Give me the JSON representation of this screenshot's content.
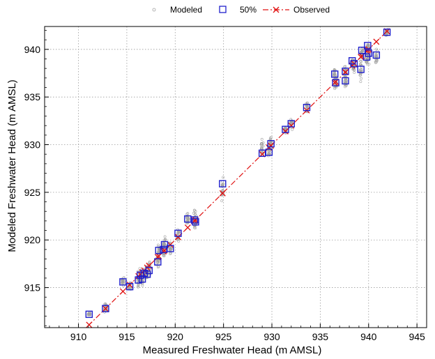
{
  "chart_data": {
    "type": "scatter",
    "xlabel": "Measured Freshwater Head (m AMSL)",
    "ylabel": "Modeled Freshwater Head (m AMSL)",
    "xlim": [
      906.5,
      946.0
    ],
    "ylim": [
      910.8,
      942.4
    ],
    "x_ticks": [
      910,
      915,
      920,
      925,
      930,
      935,
      940,
      945
    ],
    "y_ticks": [
      915,
      920,
      925,
      930,
      935,
      940
    ],
    "grid": true,
    "legend_position": "top-center",
    "legend": {
      "modeled": "Modeled",
      "p50": "50%",
      "observed": "Observed"
    },
    "colors": {
      "modeled": "#a0a0a0",
      "p50": "#1f1fcc",
      "observed": "#e01010"
    },
    "observed_line": {
      "x": [
        911.0,
        942.0
      ],
      "y": [
        911.0,
        942.0
      ]
    },
    "wells": [
      {
        "x": 911.1,
        "p50": 912.2,
        "min": 912.0,
        "max": 912.5
      },
      {
        "x": 912.8,
        "p50": 912.8,
        "min": 912.3,
        "max": 913.6
      },
      {
        "x": 914.6,
        "p50": 915.6,
        "min": 915.0,
        "max": 916.4
      },
      {
        "x": 915.3,
        "p50": 915.1,
        "min": 914.5,
        "max": 915.8
      },
      {
        "x": 916.2,
        "p50": 915.8,
        "min": 914.8,
        "max": 916.9
      },
      {
        "x": 916.4,
        "p50": 916.3,
        "min": 915.2,
        "max": 917.3
      },
      {
        "x": 916.6,
        "p50": 915.9,
        "min": 915.0,
        "max": 917.0
      },
      {
        "x": 916.8,
        "p50": 916.5,
        "min": 915.6,
        "max": 917.4
      },
      {
        "x": 917.1,
        "p50": 916.4,
        "min": 915.5,
        "max": 917.6
      },
      {
        "x": 917.3,
        "p50": 916.8,
        "min": 916.0,
        "max": 918.0
      },
      {
        "x": 918.2,
        "p50": 917.7,
        "min": 916.8,
        "max": 918.8
      },
      {
        "x": 918.3,
        "p50": 918.9,
        "min": 917.8,
        "max": 919.8
      },
      {
        "x": 918.9,
        "p50": 919.5,
        "min": 918.4,
        "max": 920.6
      },
      {
        "x": 918.8,
        "p50": 919.0,
        "min": 918.0,
        "max": 920.1
      },
      {
        "x": 919.5,
        "p50": 919.1,
        "min": 918.3,
        "max": 920.0
      },
      {
        "x": 920.3,
        "p50": 920.7,
        "min": 919.6,
        "max": 921.6
      },
      {
        "x": 921.3,
        "p50": 922.2,
        "min": 921.0,
        "max": 923.3
      },
      {
        "x": 922.0,
        "p50": 922.1,
        "min": 920.9,
        "max": 923.6
      },
      {
        "x": 922.1,
        "p50": 921.9,
        "min": 920.8,
        "max": 922.9
      },
      {
        "x": 924.9,
        "p50": 925.9,
        "min": 923.9,
        "max": 927.2
      },
      {
        "x": 929.0,
        "p50": 929.1,
        "min": 928.1,
        "max": 931.2
      },
      {
        "x": 929.7,
        "p50": 929.2,
        "min": 928.3,
        "max": 930.3
      },
      {
        "x": 929.9,
        "p50": 930.1,
        "min": 929.2,
        "max": 931.0
      },
      {
        "x": 931.4,
        "p50": 931.6,
        "min": 930.9,
        "max": 932.2
      },
      {
        "x": 932.0,
        "p50": 932.2,
        "min": 931.5,
        "max": 932.9
      },
      {
        "x": 933.6,
        "p50": 933.9,
        "min": 933.1,
        "max": 934.9
      },
      {
        "x": 936.5,
        "p50": 937.4,
        "min": 936.4,
        "max": 938.3
      },
      {
        "x": 936.6,
        "p50": 936.5,
        "min": 935.6,
        "max": 937.3
      },
      {
        "x": 937.6,
        "p50": 937.7,
        "min": 936.6,
        "max": 938.6
      },
      {
        "x": 937.6,
        "p50": 936.7,
        "min": 935.3,
        "max": 937.6
      },
      {
        "x": 938.3,
        "p50": 938.8,
        "min": 937.6,
        "max": 939.5
      },
      {
        "x": 938.5,
        "p50": 938.5,
        "min": 937.3,
        "max": 939.3
      },
      {
        "x": 939.2,
        "p50": 937.9,
        "min": 936.5,
        "max": 939.0
      },
      {
        "x": 939.3,
        "p50": 939.9,
        "min": 938.6,
        "max": 940.6
      },
      {
        "x": 939.8,
        "p50": 939.2,
        "min": 938.1,
        "max": 940.1
      },
      {
        "x": 939.9,
        "p50": 940.4,
        "min": 939.3,
        "max": 941.0
      },
      {
        "x": 940.0,
        "p50": 939.6,
        "min": 938.4,
        "max": 940.8
      },
      {
        "x": 940.8,
        "p50": 939.4,
        "min": 938.2,
        "max": 940.3
      },
      {
        "x": 941.9,
        "p50": 941.8,
        "min": 941.2,
        "max": 942.3
      }
    ]
  }
}
